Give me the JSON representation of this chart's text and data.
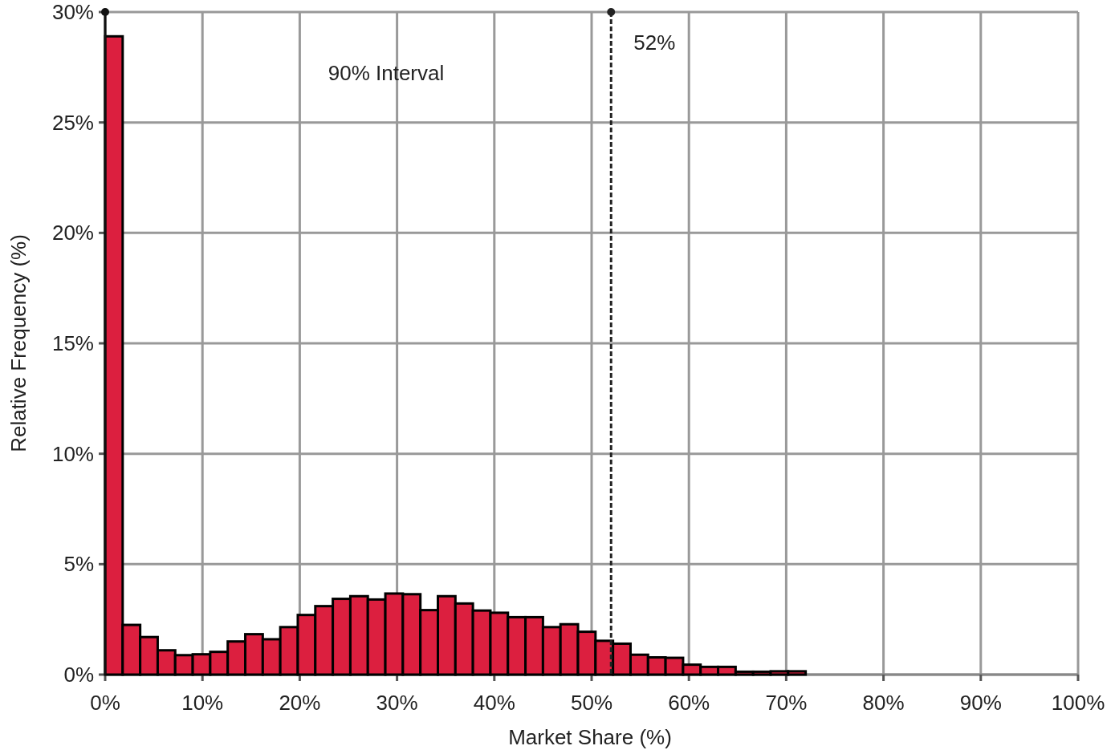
{
  "chart_data": {
    "type": "histogram",
    "xlabel": "Market Share (%)",
    "ylabel": "Relative Frequency (%)",
    "bins": [
      0,
      1.8,
      3.6,
      5.4,
      7.2,
      9,
      10.8,
      12.6,
      14.4,
      16.2,
      18,
      19.8,
      21.6,
      23.4,
      25.2,
      27,
      28.8,
      30.6,
      32.4,
      34.2,
      36,
      37.8,
      39.6,
      41.4,
      43.2,
      45,
      46.8,
      48.6,
      50.4,
      52.2,
      54,
      55.8,
      57.6,
      59.4,
      61.2,
      63,
      64.8,
      66.6,
      68.4,
      70.2,
      72
    ],
    "values": [
      28.9,
      2.25,
      1.7,
      1.1,
      0.88,
      0.92,
      1.03,
      1.5,
      1.83,
      1.6,
      2.15,
      2.7,
      3.1,
      3.43,
      3.55,
      3.4,
      3.67,
      3.64,
      2.92,
      3.55,
      3.22,
      2.9,
      2.8,
      2.6,
      2.6,
      2.15,
      2.28,
      1.94,
      1.53,
      1.4,
      0.9,
      0.78,
      0.76,
      0.45,
      0.35,
      0.35,
      0.13,
      0.13,
      0.15,
      0.15
    ],
    "color": "#dc1f3f",
    "xlim": [
      0,
      100
    ],
    "xticks": [
      {
        "value": 0,
        "label": "0%"
      },
      {
        "value": 10,
        "label": "10%"
      },
      {
        "value": 20,
        "label": "20%"
      },
      {
        "value": 30,
        "label": "30%"
      },
      {
        "value": 40,
        "label": "40%"
      },
      {
        "value": 50,
        "label": "50%"
      },
      {
        "value": 60,
        "label": "60%"
      },
      {
        "value": 70,
        "label": "70%"
      },
      {
        "value": 80,
        "label": "80%"
      },
      {
        "value": 90,
        "label": "90%"
      },
      {
        "value": 100,
        "label": "100%"
      }
    ],
    "ylim": [
      0,
      30
    ],
    "yticks": [
      {
        "value": 0,
        "label": "0%"
      },
      {
        "value": 5,
        "label": "5%"
      },
      {
        "value": 10,
        "label": "10%"
      },
      {
        "value": 15,
        "label": "15%"
      },
      {
        "value": 20,
        "label": "20%"
      },
      {
        "value": 25,
        "label": "25%"
      },
      {
        "value": 30,
        "label": "30%"
      }
    ],
    "grid": true,
    "ref_lines": [
      {
        "axis": "x",
        "value": 0,
        "label": null,
        "color": "#111111",
        "line_style": "solid"
      },
      {
        "axis": "x",
        "value": 52,
        "label": "52%",
        "color": "#222222",
        "line_style": "dashed"
      }
    ],
    "annotations": [
      "90% Interval"
    ]
  }
}
